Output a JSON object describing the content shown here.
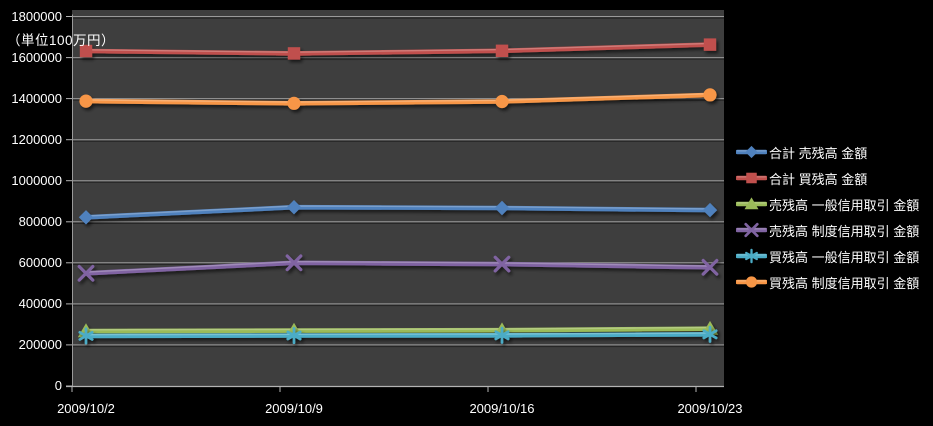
{
  "chart_data": {
    "type": "line",
    "title": "",
    "unit_label": "（単位100万円）",
    "x_categories": [
      "2009/10/2",
      "2009/10/9",
      "2009/10/16",
      "2009/10/23"
    ],
    "y_ticks": [
      0,
      200000,
      400000,
      600000,
      800000,
      1000000,
      1200000,
      1400000,
      1600000,
      1800000
    ],
    "y_axis": {
      "min": 0,
      "max": 1800000
    },
    "grid": true,
    "legend_position": "right",
    "colors": {
      "page_bg": "#000000",
      "plot_bg": "#3E3E3E",
      "gridline": "#9A9A9A",
      "axis_line": "#B3B3B3",
      "text": "#FFFFFF"
    },
    "series": [
      {
        "name": "合計 売残高 金額",
        "color": "#4F81BD",
        "marker": "diamond",
        "values": [
          822000,
          871000,
          867000,
          857000
        ]
      },
      {
        "name": "合計 買残高 金額",
        "color": "#C0504D",
        "marker": "square",
        "values": [
          1632000,
          1620000,
          1633000,
          1663000
        ]
      },
      {
        "name": "売残高 一般信用取引 金額",
        "color": "#9BBB59",
        "marker": "triangle",
        "values": [
          268000,
          270000,
          272000,
          279000
        ]
      },
      {
        "name": "売残高 制度信用取引 金額",
        "color": "#8064A2",
        "marker": "x",
        "values": [
          549000,
          600000,
          594000,
          578000
        ]
      },
      {
        "name": "買残高 一般信用取引 金額",
        "color": "#4BACC6",
        "marker": "asterisk",
        "values": [
          244000,
          246000,
          247000,
          252000
        ]
      },
      {
        "name": "買残高 制度信用取引 金額",
        "color": "#F79646",
        "marker": "circle",
        "values": [
          1388000,
          1377000,
          1386000,
          1418000
        ]
      }
    ]
  }
}
